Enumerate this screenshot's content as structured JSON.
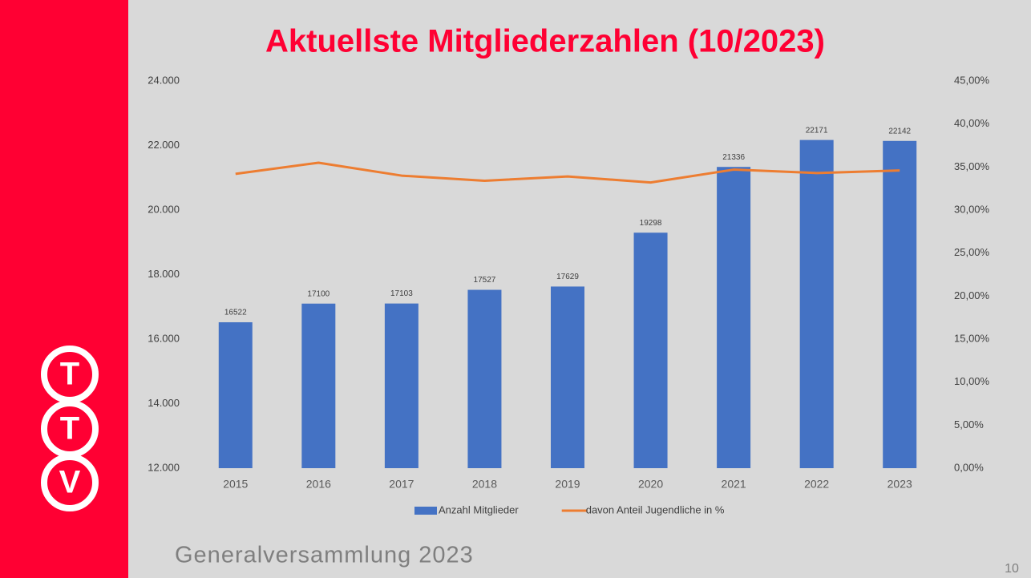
{
  "chart_data": {
    "type": "bar",
    "title": "Aktuellste Mitgliederzahlen (10/2023)",
    "categories": [
      "2015",
      "2016",
      "2017",
      "2018",
      "2019",
      "2020",
      "2021",
      "2022",
      "2023"
    ],
    "series": [
      {
        "name": "Anzahl Mitglieder",
        "type": "bar",
        "color": "#4472c4",
        "values": [
          16522,
          17100,
          17103,
          17527,
          17629,
          19298,
          21336,
          22171,
          22142
        ]
      },
      {
        "name": "davon Anteil Jugendliche in %",
        "type": "line",
        "color": "#ed7d31",
        "axis": "y2",
        "values": [
          34.2,
          35.5,
          34.0,
          33.4,
          33.9,
          33.2,
          34.7,
          34.3,
          34.6
        ]
      }
    ],
    "ylim": [
      12000,
      24000
    ],
    "yticks": [
      {
        "value": 12000,
        "label": "12.000"
      },
      {
        "value": 14000,
        "label": "14.000"
      },
      {
        "value": 16000,
        "label": "16.000"
      },
      {
        "value": 18000,
        "label": "18.000"
      },
      {
        "value": 20000,
        "label": "20.000"
      },
      {
        "value": 22000,
        "label": "22.000"
      },
      {
        "value": 24000,
        "label": "24.000"
      }
    ],
    "y2lim": [
      0,
      45
    ],
    "y2ticks": [
      {
        "value": 0,
        "label": "0,00%"
      },
      {
        "value": 5,
        "label": "5,00%"
      },
      {
        "value": 10,
        "label": "10,00%"
      },
      {
        "value": 15,
        "label": "15,00%"
      },
      {
        "value": 20,
        "label": "20,00%"
      },
      {
        "value": 25,
        "label": "25,00%"
      },
      {
        "value": 30,
        "label": "30,00%"
      },
      {
        "value": 35,
        "label": "35,00%"
      },
      {
        "value": 40,
        "label": "40,00%"
      },
      {
        "value": 45,
        "label": "45,00%"
      }
    ],
    "grid": false,
    "legend": "bottom"
  },
  "logo": [
    "T",
    "T",
    "V"
  ],
  "footer": "Generalversammlung 2023",
  "page_number": "10"
}
